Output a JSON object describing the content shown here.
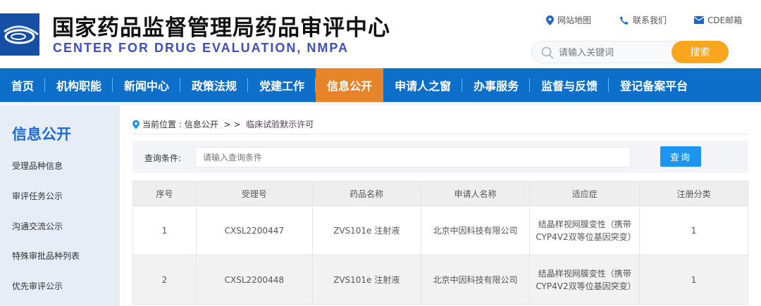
{
  "header": {
    "title": "国家药品监督管理局药品审评中心",
    "subtitle": "CENTER FOR DRUG EVALUATION, NMPA",
    "links": [
      {
        "icon": "map-pin-icon",
        "label": "网站地图"
      },
      {
        "icon": "phone-icon",
        "label": "联系我们"
      },
      {
        "icon": "mail-icon",
        "label": "CDE邮箱"
      }
    ],
    "search": {
      "placeholder": "请输入关键词",
      "button": "搜索"
    }
  },
  "nav": {
    "items": [
      "首页",
      "机构职能",
      "新闻中心",
      "政策法规",
      "党建工作",
      "信息公开",
      "申请人之窗",
      "办事服务",
      "监督与反馈",
      "登记备案平台"
    ],
    "active": "信息公开"
  },
  "sidebar": {
    "title": "信息公开",
    "items": [
      "受理品种信息",
      "审评任务公示",
      "沟通交流公示",
      "特殊审批品种列表",
      "优先审评公示"
    ]
  },
  "breadcrumb": {
    "prefix": "当前位置 : ",
    "section": "信息公开",
    "sep": " > > ",
    "current": "临床试验默示许可"
  },
  "query": {
    "label": "查询条件:",
    "placeholder": "请输入查询条件",
    "button": "查询"
  },
  "table": {
    "headers": [
      "序号",
      "受理号",
      "药品名称",
      "申请人名称",
      "适应症",
      "注册分类"
    ],
    "rows": [
      [
        "1",
        "CXSL2200447",
        "ZVS101e 注射液",
        "北京中因科技有限公司",
        "结晶样视网膜变性（携带CYP4V2双等位基因突变）",
        "1"
      ],
      [
        "2",
        "CXSL2200448",
        "ZVS101e 注射液",
        "北京中因科技有限公司",
        "结晶样视网膜变性（携带CYP4V2双等位基因突变）",
        "1"
      ]
    ]
  },
  "colors": {
    "nav": "#0d6fca",
    "nav_active": "#e7842a",
    "search_button": "#f9a51e",
    "query_button": "#1b95f0",
    "sidebar_title": "#1a6ad6"
  }
}
